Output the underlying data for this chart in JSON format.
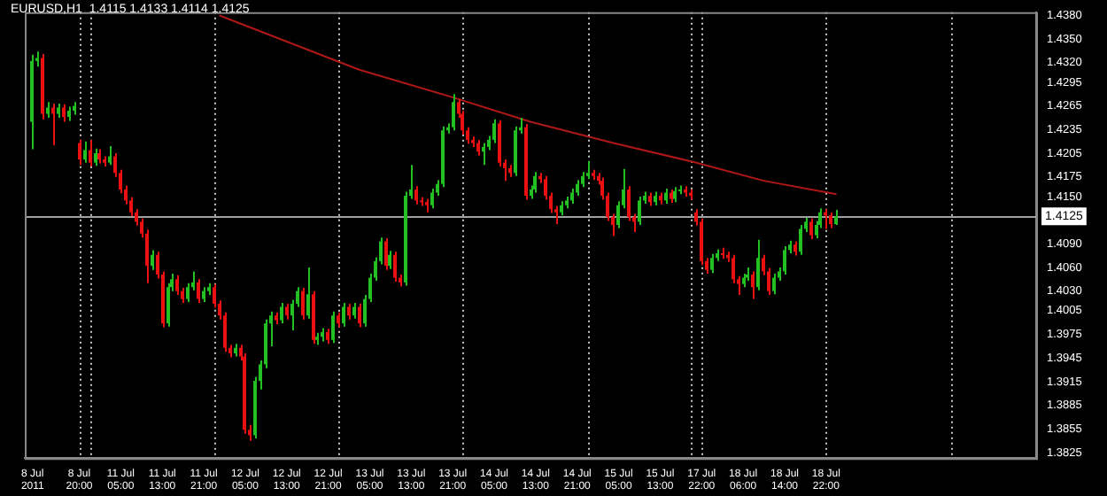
{
  "chart_data": {
    "type": "candlestick",
    "title": "EURUSD,H1  1.4115 1.4133 1.4114 1.4125",
    "categories": [
      "8 Jul 2011",
      null,
      null,
      null,
      null,
      null,
      null,
      null,
      null,
      "8 Jul 20:00",
      null,
      null,
      null,
      null,
      null,
      null,
      null,
      "11 Jul 05:00",
      null,
      null,
      null,
      null,
      null,
      null,
      null,
      "11 Jul 13:00",
      null,
      null,
      null,
      null,
      null,
      null,
      null,
      "11 Jul 21:00",
      null,
      null,
      null,
      null,
      null,
      null,
      null,
      "12 Jul 05:00",
      null,
      null,
      null,
      null,
      null,
      null,
      null,
      "12 Jul 13:00",
      null,
      null,
      null,
      null,
      null,
      null,
      null,
      "12 Jul 21:00",
      null,
      null,
      null,
      null,
      null,
      null,
      null,
      "13 Jul 05:00",
      null,
      null,
      null,
      null,
      null,
      null,
      null,
      "13 Jul 13:00",
      null,
      null,
      null,
      null,
      null,
      null,
      null,
      "13 Jul 21:00",
      null,
      null,
      null,
      null,
      null,
      null,
      null,
      "14 Jul 05:00",
      null,
      null,
      null,
      null,
      null,
      null,
      null,
      "14 Jul 13:00",
      null,
      null,
      null,
      null,
      null,
      null,
      null,
      "14 Jul 21:00",
      null,
      null,
      null,
      null,
      null,
      null,
      null,
      "15 Jul 05:00",
      null,
      null,
      null,
      null,
      null,
      null,
      null,
      "15 Jul 13:00",
      null,
      null,
      null,
      null,
      null,
      null,
      null,
      "17 Jul 22:00",
      null,
      null,
      null,
      null,
      null,
      null,
      null,
      "18 Jul 06:00",
      null,
      null,
      null,
      null,
      null,
      null,
      null,
      "18 Jul 14:00",
      null,
      null,
      null,
      null,
      null,
      null,
      null,
      "18 Jul 22:00",
      null,
      null,
      null,
      null,
      null,
      null,
      null,
      null,
      null,
      null,
      null,
      null,
      null,
      null,
      null,
      null,
      null,
      null,
      null,
      null,
      null,
      null,
      null,
      null,
      null,
      null,
      null,
      null,
      null,
      null,
      null,
      null,
      null,
      null,
      null,
      null,
      null,
      null,
      null,
      null
    ],
    "ohlc": [
      [
        1.4245,
        1.433,
        1.421,
        1.4322
      ],
      [
        1.4322,
        1.4334,
        1.4315,
        1.4326
      ],
      [
        1.4326,
        1.4331,
        1.4248,
        1.4255
      ],
      [
        1.4255,
        1.427,
        1.425,
        1.4263
      ],
      [
        1.4263,
        1.4268,
        1.4215,
        1.4255
      ],
      [
        1.4255,
        1.4268,
        1.425,
        1.4263
      ],
      [
        1.4263,
        1.4267,
        1.4245,
        1.4251
      ],
      [
        1.4251,
        1.4264,
        1.4246,
        1.4259
      ],
      [
        1.4259,
        1.427,
        1.4254,
        1.4265
      ],
      [
        1.4218,
        1.4222,
        1.419,
        1.4197
      ],
      [
        1.4197,
        1.422,
        1.4193,
        1.4209
      ],
      [
        1.4209,
        1.4222,
        1.4188,
        1.4193
      ],
      [
        1.4193,
        1.4211,
        1.4189,
        1.4205
      ],
      [
        1.4205,
        1.421,
        1.4192,
        1.4197
      ],
      [
        1.4197,
        1.4201,
        1.4188,
        1.4193
      ],
      [
        1.4193,
        1.4214,
        1.419,
        1.4201
      ],
      [
        1.4201,
        1.4205,
        1.4175,
        1.418
      ],
      [
        1.418,
        1.4184,
        1.4154,
        1.4159
      ],
      [
        1.4159,
        1.4164,
        1.414,
        1.4145
      ],
      [
        1.4145,
        1.4149,
        1.4125,
        1.413
      ],
      [
        1.413,
        1.4134,
        1.4113,
        1.4118
      ],
      [
        1.4118,
        1.4122,
        1.4098,
        1.4103
      ],
      [
        1.4103,
        1.4108,
        1.404,
        1.4062
      ],
      [
        1.4062,
        1.4082,
        1.4057,
        1.4076
      ],
      [
        1.4076,
        1.408,
        1.4046,
        1.4051
      ],
      [
        1.4051,
        1.4055,
        1.3984,
        1.3989
      ],
      [
        1.3989,
        1.404,
        1.3985,
        1.4035
      ],
      [
        1.4035,
        1.4052,
        1.403,
        1.4045
      ],
      [
        1.4045,
        1.405,
        1.4025,
        1.403
      ],
      [
        1.403,
        1.4034,
        1.4015,
        1.402
      ],
      [
        1.402,
        1.404,
        1.4016,
        1.4035
      ],
      [
        1.4035,
        1.4055,
        1.4031,
        1.4041
      ],
      [
        1.4041,
        1.4045,
        1.4015,
        1.402
      ],
      [
        1.402,
        1.4035,
        1.4016,
        1.403
      ],
      [
        1.403,
        1.404,
        1.4025,
        1.4035
      ],
      [
        1.4035,
        1.4039,
        1.4009,
        1.4014
      ],
      [
        1.4014,
        1.4018,
        1.3994,
        1.3999
      ],
      [
        1.3999,
        1.4003,
        1.3953,
        1.3958
      ],
      [
        1.3958,
        1.3962,
        1.3946,
        1.3951
      ],
      [
        1.3951,
        1.3963,
        1.3947,
        1.3958
      ],
      [
        1.3958,
        1.3962,
        1.3942,
        1.3947
      ],
      [
        1.3947,
        1.3951,
        1.3849,
        1.3854
      ],
      [
        1.3854,
        1.386,
        1.384,
        1.3847
      ],
      [
        1.3847,
        1.3921,
        1.3843,
        1.3916
      ],
      [
        1.3916,
        1.3942,
        1.3905,
        1.3937
      ],
      [
        1.3937,
        1.3994,
        1.3932,
        1.3989
      ],
      [
        1.3989,
        1.4004,
        1.396,
        1.3999
      ],
      [
        1.3999,
        1.4003,
        1.3988,
        1.3993
      ],
      [
        1.3993,
        1.4015,
        1.3989,
        1.401
      ],
      [
        1.401,
        1.4014,
        1.3994,
        1.3999
      ],
      [
        1.3999,
        1.4019,
        1.398,
        1.4014
      ],
      [
        1.4014,
        1.4035,
        1.401,
        1.403
      ],
      [
        1.403,
        1.4034,
        1.3994,
        1.3999
      ],
      [
        1.3999,
        1.406,
        1.3995,
        1.4026
      ],
      [
        1.4026,
        1.403,
        1.3963,
        1.3968
      ],
      [
        1.3968,
        1.3977,
        1.3962,
        1.3972
      ],
      [
        1.3972,
        1.3983,
        1.3966,
        1.3978
      ],
      [
        1.3978,
        1.3982,
        1.3963,
        1.3968
      ],
      [
        1.3968,
        1.4004,
        1.3964,
        1.3999
      ],
      [
        1.3999,
        1.4003,
        1.3984,
        1.3989
      ],
      [
        1.3989,
        1.4015,
        1.3985,
        1.401
      ],
      [
        1.401,
        1.4014,
        1.3994,
        1.3999
      ],
      [
        1.3999,
        1.4015,
        1.3995,
        1.401
      ],
      [
        1.401,
        1.4014,
        1.3984,
        1.3989
      ],
      [
        1.3989,
        1.4025,
        1.3985,
        1.402
      ],
      [
        1.402,
        1.4052,
        1.4016,
        1.4047
      ],
      [
        1.4047,
        1.4073,
        1.4043,
        1.4068
      ],
      [
        1.4068,
        1.4098,
        1.4064,
        1.4093
      ],
      [
        1.4093,
        1.4097,
        1.4057,
        1.4062
      ],
      [
        1.4062,
        1.4081,
        1.4058,
        1.4076
      ],
      [
        1.4076,
        1.408,
        1.4042,
        1.4047
      ],
      [
        1.4047,
        1.4051,
        1.4036,
        1.4041
      ],
      [
        1.4041,
        1.4156,
        1.4037,
        1.4151
      ],
      [
        1.4151,
        1.419,
        1.4147,
        1.4159
      ],
      [
        1.4159,
        1.4163,
        1.414,
        1.4145
      ],
      [
        1.4145,
        1.4149,
        1.4138,
        1.4143
      ],
      [
        1.4143,
        1.4147,
        1.413,
        1.4139
      ],
      [
        1.4139,
        1.416,
        1.4135,
        1.4155
      ],
      [
        1.4155,
        1.4171,
        1.4151,
        1.4166
      ],
      [
        1.4166,
        1.4239,
        1.4162,
        1.4234
      ],
      [
        1.4234,
        1.4243,
        1.423,
        1.4238
      ],
      [
        1.4238,
        1.428,
        1.4234,
        1.427
      ],
      [
        1.427,
        1.4274,
        1.425,
        1.4255
      ],
      [
        1.4255,
        1.4259,
        1.4229,
        1.4234
      ],
      [
        1.4234,
        1.4238,
        1.4217,
        1.4222
      ],
      [
        1.4222,
        1.4226,
        1.4213,
        1.4218
      ],
      [
        1.4218,
        1.4222,
        1.4202,
        1.4207
      ],
      [
        1.4207,
        1.4218,
        1.419,
        1.4213
      ],
      [
        1.4213,
        1.4227,
        1.4209,
        1.4222
      ],
      [
        1.4222,
        1.4248,
        1.4218,
        1.4243
      ],
      [
        1.4243,
        1.4247,
        1.4188,
        1.4193
      ],
      [
        1.4193,
        1.4197,
        1.417,
        1.4186
      ],
      [
        1.4186,
        1.419,
        1.4175,
        1.418
      ],
      [
        1.418,
        1.4239,
        1.4176,
        1.4234
      ],
      [
        1.4234,
        1.425,
        1.423,
        1.4238
      ],
      [
        1.4238,
        1.4242,
        1.4146,
        1.4151
      ],
      [
        1.4151,
        1.4164,
        1.4147,
        1.4159
      ],
      [
        1.4159,
        1.4181,
        1.4155,
        1.4176
      ],
      [
        1.4176,
        1.418,
        1.4167,
        1.4172
      ],
      [
        1.4172,
        1.4176,
        1.4146,
        1.4151
      ],
      [
        1.4151,
        1.4155,
        1.4129,
        1.4134
      ],
      [
        1.4134,
        1.4138,
        1.4115,
        1.413
      ],
      [
        1.413,
        1.4144,
        1.4126,
        1.4139
      ],
      [
        1.4139,
        1.415,
        1.4135,
        1.4145
      ],
      [
        1.4145,
        1.416,
        1.4141,
        1.4155
      ],
      [
        1.4155,
        1.4171,
        1.4151,
        1.4166
      ],
      [
        1.4166,
        1.4181,
        1.4162,
        1.4176
      ],
      [
        1.4176,
        1.4195,
        1.4172,
        1.418
      ],
      [
        1.418,
        1.4184,
        1.4171,
        1.4176
      ],
      [
        1.4176,
        1.418,
        1.4165,
        1.417
      ],
      [
        1.417,
        1.4174,
        1.4146,
        1.4151
      ],
      [
        1.4151,
        1.4155,
        1.4119,
        1.4124
      ],
      [
        1.4124,
        1.4128,
        1.41,
        1.4114
      ],
      [
        1.4114,
        1.4144,
        1.411,
        1.4139
      ],
      [
        1.4139,
        1.4185,
        1.4135,
        1.4159
      ],
      [
        1.4159,
        1.4163,
        1.4119,
        1.4124
      ],
      [
        1.4124,
        1.4128,
        1.4105,
        1.4118
      ],
      [
        1.4118,
        1.415,
        1.4114,
        1.4145
      ],
      [
        1.4145,
        1.4156,
        1.4141,
        1.4151
      ],
      [
        1.4151,
        1.4155,
        1.4138,
        1.4143
      ],
      [
        1.4143,
        1.4156,
        1.4139,
        1.4151
      ],
      [
        1.4151,
        1.4155,
        1.414,
        1.4145
      ],
      [
        1.4145,
        1.416,
        1.4141,
        1.4155
      ],
      [
        1.4155,
        1.4159,
        1.4142,
        1.4147
      ],
      [
        1.4147,
        1.4162,
        1.4143,
        1.4157
      ],
      [
        1.4157,
        1.4164,
        1.4153,
        1.4159
      ],
      [
        1.4159,
        1.4163,
        1.415,
        1.4155
      ],
      [
        1.4155,
        1.4159,
        1.4146,
        1.4151
      ],
      [
        1.413,
        1.4134,
        1.4113,
        1.4118
      ],
      [
        1.4118,
        1.4122,
        1.4063,
        1.4068
      ],
      [
        1.4068,
        1.4072,
        1.4052,
        1.4057
      ],
      [
        1.4057,
        1.4077,
        1.4053,
        1.4072
      ],
      [
        1.4072,
        1.4083,
        1.4068,
        1.4078
      ],
      [
        1.4078,
        1.4085,
        1.4071,
        1.4076
      ],
      [
        1.4076,
        1.408,
        1.4067,
        1.4072
      ],
      [
        1.4072,
        1.4076,
        1.404,
        1.4045
      ],
      [
        1.4045,
        1.4049,
        1.4025,
        1.4039
      ],
      [
        1.4039,
        1.4052,
        1.4035,
        1.4047
      ],
      [
        1.4047,
        1.406,
        1.4043,
        1.4051
      ],
      [
        1.4051,
        1.4055,
        1.402,
        1.4035
      ],
      [
        1.4035,
        1.4095,
        1.4031,
        1.4072
      ],
      [
        1.4072,
        1.4076,
        1.405,
        1.4055
      ],
      [
        1.4055,
        1.4059,
        1.4025,
        1.403
      ],
      [
        1.403,
        1.4052,
        1.4026,
        1.4047
      ],
      [
        1.4047,
        1.406,
        1.4043,
        1.4055
      ],
      [
        1.4055,
        1.4087,
        1.4051,
        1.4082
      ],
      [
        1.4082,
        1.4094,
        1.4078,
        1.4089
      ],
      [
        1.4089,
        1.4093,
        1.4075,
        1.408
      ],
      [
        1.408,
        1.4114,
        1.4076,
        1.4109
      ],
      [
        1.4109,
        1.4123,
        1.4105,
        1.4118
      ],
      [
        1.4118,
        1.4122,
        1.4096,
        1.4101
      ],
      [
        1.4101,
        1.4119,
        1.4097,
        1.4114
      ],
      [
        1.4114,
        1.4135,
        1.411,
        1.413
      ],
      [
        1.413,
        1.4134,
        1.4109,
        1.4126
      ],
      [
        1.4126,
        1.413,
        1.411,
        1.4115
      ],
      [
        1.4115,
        1.4133,
        1.4114,
        1.4125
      ],
      null,
      null,
      null,
      null,
      null,
      null,
      null,
      null,
      null,
      null,
      null,
      null,
      null,
      null,
      null,
      null,
      null,
      null,
      null,
      null,
      null,
      null,
      null,
      null,
      null,
      null,
      null,
      null,
      null,
      null,
      null,
      null,
      null,
      null,
      null,
      null,
      null,
      null
    ],
    "colors": [
      "#22c022",
      "#22c022",
      "#e81010",
      "#22c022",
      "#e81010",
      "#22c022",
      "#e81010",
      "#22c022",
      "#22c022",
      "#e81010",
      "#22c022",
      "#e81010",
      "#22c022",
      "#e81010",
      "#e81010",
      "#22c022",
      "#e81010",
      "#e81010",
      "#e81010",
      "#e81010",
      "#e81010",
      "#e81010",
      "#e81010",
      "#22c022",
      "#e81010",
      "#e81010",
      "#22c022",
      "#22c022",
      "#e81010",
      "#e81010",
      "#22c022",
      "#22c022",
      "#e81010",
      "#22c022",
      "#22c022",
      "#e81010",
      "#e81010",
      "#e81010",
      "#e81010",
      "#22c022",
      "#e81010",
      "#e81010",
      "#e81010",
      "#22c022",
      "#22c022",
      "#22c022",
      "#22c022",
      "#e81010",
      "#22c022",
      "#e81010",
      "#22c022",
      "#22c022",
      "#e81010",
      "#22c022",
      "#e81010",
      "#22c022",
      "#22c022",
      "#e81010",
      "#22c022",
      "#e81010",
      "#22c022",
      "#e81010",
      "#22c022",
      "#e81010",
      "#22c022",
      "#22c022",
      "#22c022",
      "#22c022",
      "#e81010",
      "#22c022",
      "#e81010",
      "#e81010",
      "#22c022",
      "#22c022",
      "#e81010",
      "#e81010",
      "#e81010",
      "#22c022",
      "#22c022",
      "#22c022",
      "#22c022",
      "#22c022",
      "#e81010",
      "#e81010",
      "#e81010",
      "#e81010",
      "#e81010",
      "#22c022",
      "#22c022",
      "#22c022",
      "#e81010",
      "#e81010",
      "#e81010",
      "#22c022",
      "#22c022",
      "#e81010",
      "#22c022",
      "#22c022",
      "#e81010",
      "#e81010",
      "#e81010",
      "#e81010",
      "#22c022",
      "#22c022",
      "#22c022",
      "#22c022",
      "#22c022",
      "#22c022",
      "#e81010",
      "#e81010",
      "#e81010",
      "#e81010",
      "#e81010",
      "#22c022",
      "#22c022",
      "#e81010",
      "#e81010",
      "#22c022",
      "#22c022",
      "#e81010",
      "#22c022",
      "#e81010",
      "#22c022",
      "#e81010",
      "#22c022",
      "#22c022",
      "#e81010",
      "#e81010",
      "#e81010",
      "#e81010",
      "#e81010",
      "#22c022",
      "#22c022",
      "#e81010",
      "#e81010",
      "#e81010",
      "#e81010",
      "#22c022",
      "#22c022",
      "#e81010",
      "#22c022",
      "#e81010",
      "#e81010",
      "#22c022",
      "#22c022",
      "#22c022",
      "#22c022",
      "#e81010",
      "#22c022",
      "#22c022",
      "#e81010",
      "#22c022",
      "#22c022",
      "#e81010",
      "#e81010",
      "#22c022",
      null,
      null,
      null,
      null,
      null,
      null,
      null,
      null,
      null,
      null,
      null,
      null,
      null,
      null,
      null,
      null,
      null,
      null,
      null,
      null,
      null,
      null,
      null,
      null,
      null,
      null,
      null,
      null,
      null,
      null,
      null,
      null,
      null,
      null,
      null,
      null,
      null,
      null
    ],
    "series": [
      {
        "type": "line",
        "color": "#b01818",
        "values": [
          null,
          null,
          null,
          null,
          null,
          null,
          null,
          null,
          null,
          null,
          null,
          null,
          null,
          null,
          null,
          null,
          null,
          null,
          null,
          null,
          null,
          null,
          null,
          null,
          null,
          null,
          null,
          null,
          null,
          null,
          null,
          null,
          null,
          null,
          null,
          null,
          1.438,
          null,
          null,
          null,
          null,
          null,
          null,
          null,
          null,
          null,
          null,
          null,
          null,
          null,
          null,
          null,
          null,
          null,
          null,
          null,
          null,
          null,
          null,
          null,
          null,
          null,
          null,
          1.4311,
          null,
          null,
          null,
          null,
          null,
          null,
          null,
          null,
          null,
          null,
          null,
          null,
          null,
          null,
          null,
          null,
          null,
          1.4276,
          null,
          null,
          null,
          null,
          null,
          null,
          null,
          null,
          null,
          null,
          null,
          null,
          null,
          null,
          1.4245,
          null,
          null,
          null,
          null,
          null,
          null,
          null,
          null,
          null,
          null,
          null,
          null,
          null,
          null,
          null,
          1.4218,
          null,
          null,
          null,
          null,
          null,
          null,
          null,
          null,
          null,
          null,
          null,
          null,
          null,
          null,
          null,
          1.4193,
          null,
          null,
          null,
          null,
          null,
          null,
          null,
          null,
          null,
          null,
          null,
          null,
          1.417,
          null,
          null,
          null,
          null,
          null,
          null,
          null,
          null,
          null,
          null,
          null,
          null,
          null,
          1.4153,
          null,
          null,
          null,
          null,
          null,
          null,
          null,
          null,
          null,
          null,
          null,
          null,
          null,
          null,
          null,
          null,
          null,
          null,
          null,
          null,
          null,
          null,
          null,
          null,
          null,
          null,
          null,
          null,
          null,
          null,
          null,
          null,
          null,
          null,
          null,
          null,
          null,
          null
        ]
      }
    ],
    "ylim": [
      1.3818,
      1.4384
    ],
    "yticks": [
      {
        "value": 1.438,
        "label": "1.4380"
      },
      {
        "value": 1.435,
        "label": "1.4350"
      },
      {
        "value": 1.432,
        "label": "1.4320"
      },
      1.4295,
      1.4265,
      1.4235,
      1.4205,
      1.4175,
      {
        "value": 1.415,
        "label": "1.4150"
      },
      {
        "value": 1.409,
        "label": "1.4090"
      },
      {
        "value": 1.406,
        "label": "1.4060"
      },
      {
        "value": 1.403,
        "label": "1.4030"
      },
      1.4005,
      1.3975,
      1.3945,
      1.3915,
      1.3885,
      1.3855,
      1.3825
    ],
    "ref_lines": [
      {
        "axis": "y",
        "value": 1.4125,
        "label": "1.4125",
        "color": "#a0a0a0",
        "line_style": "solid"
      }
    ],
    "grid": false,
    "legend": false
  }
}
